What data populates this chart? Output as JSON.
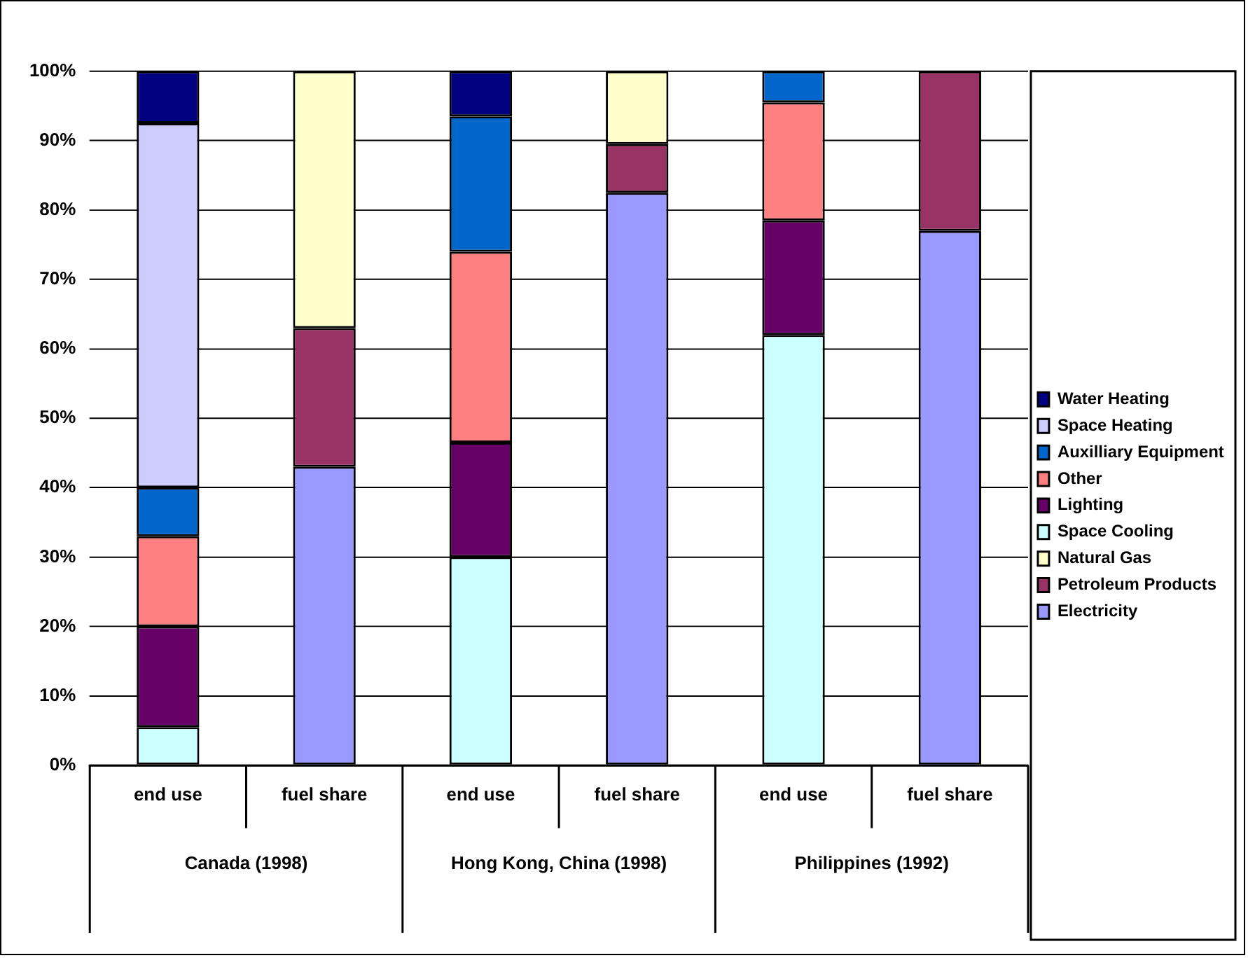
{
  "chart_data": {
    "type": "bar",
    "stacked": true,
    "categories": [
      "end use",
      "fuel share",
      "end use",
      "fuel share",
      "end use",
      "fuel share"
    ],
    "annotations": [
      "Canada (1998)",
      "Hong Kong, China (1998)",
      "Philippines (1992)"
    ],
    "series": [
      {
        "name": "Electricity",
        "color": "#9999ff",
        "values": [
          null,
          43,
          null,
          82.5,
          null,
          77
        ]
      },
      {
        "name": "Petroleum Products",
        "color": "#993366",
        "values": [
          null,
          20,
          null,
          7,
          null,
          23
        ]
      },
      {
        "name": "Natural Gas",
        "color": "#ffffcc",
        "values": [
          null,
          37,
          null,
          10.5,
          null,
          null
        ]
      },
      {
        "name": "Space Cooling",
        "color": "#ccffff",
        "values": [
          5.5,
          null,
          30,
          null,
          62,
          null
        ]
      },
      {
        "name": "Lighting",
        "color": "#660066",
        "values": [
          14.5,
          null,
          16.5,
          null,
          16.5,
          null
        ]
      },
      {
        "name": "Other",
        "color": "#ff8080",
        "values": [
          13,
          null,
          27.5,
          null,
          17,
          null
        ]
      },
      {
        "name": "Auxilliary Equipment",
        "color": "#0066cc",
        "values": [
          7,
          null,
          19.5,
          null,
          4.5,
          null
        ]
      },
      {
        "name": "Space Heating",
        "color": "#ccccff",
        "values": [
          52.5,
          null,
          null,
          null,
          null,
          null
        ]
      },
      {
        "name": "Water Heating",
        "color": "#000080",
        "values": [
          7.5,
          null,
          6.5,
          null,
          null,
          null
        ]
      }
    ],
    "ylim": [
      0,
      100
    ],
    "yticks": [
      {
        "value": 0,
        "label": "0%"
      },
      {
        "value": 10,
        "label": "10%"
      },
      {
        "value": 20,
        "label": "20%"
      },
      {
        "value": 30,
        "label": "30%"
      },
      {
        "value": 40,
        "label": "40%"
      },
      {
        "value": 50,
        "label": "50%"
      },
      {
        "value": 60,
        "label": "60%"
      },
      {
        "value": 70,
        "label": "70%"
      },
      {
        "value": 80,
        "label": "80%"
      },
      {
        "value": 90,
        "label": "90%"
      },
      {
        "value": 100,
        "label": "100%"
      }
    ],
    "grid": "y",
    "legend": "right"
  }
}
